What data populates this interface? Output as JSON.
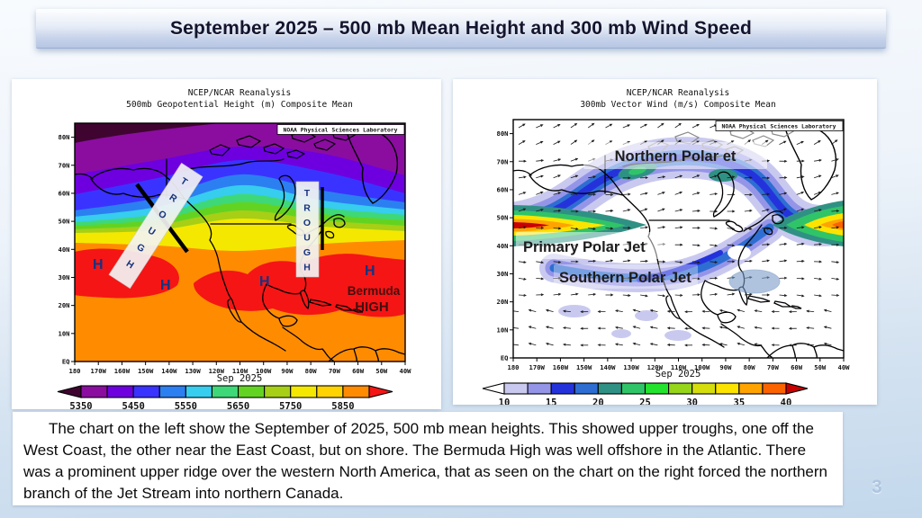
{
  "slide": {
    "title": "September 2025 – 500 mb Mean Height and 300 mb Wind Speed",
    "page_number": "3",
    "caption": "The chart on the left show the September of 2025, 500 mb mean heights. This showed upper troughs, one off the West Coast, the other near the East Coast, but on shore.  The Bermuda High was well offshore in the Atlantic.  There was a prominent upper ridge over the western North America, that as seen on the chart on the right forced the northern branch of the Jet Stream into northern Canada.",
    "colors": {
      "background_top": "#f8fbfe",
      "background_bottom": "#c3d8ec",
      "title_text": "#14142e",
      "page_number": "#aec5e0",
      "annotation_blue": "#16337f",
      "bermuda_text": "#431010"
    }
  },
  "chart_data": [
    {
      "type": "map-contour",
      "title_line1": "NCEP/NCAR Reanalysis",
      "title_line2": "500mb Geopotential Height (m) Composite Mean",
      "source": "NOAA Physical Sciences Laboratory",
      "footer": "Sep  2025",
      "units": "m",
      "lat_ticks": [
        "80N",
        "70N",
        "60N",
        "50N",
        "40N",
        "30N",
        "20N",
        "10N",
        "EQ"
      ],
      "lon_ticks": [
        "180",
        "170W",
        "160W",
        "150W",
        "140W",
        "130W",
        "120W",
        "110W",
        "100W",
        "90W",
        "80W",
        "70W",
        "60W",
        "50W",
        "40W"
      ],
      "colorbar": {
        "tick_labels": [
          "5350",
          "5450",
          "5550",
          "5650",
          "5750",
          "5850"
        ],
        "segment_interval": 50,
        "segment_colors": [
          "#8b0da0",
          "#6e00e0",
          "#3a33ff",
          "#2b7ff0",
          "#36cdef",
          "#3ed878",
          "#63d322",
          "#a6cf16",
          "#f4e800",
          "#fdd300",
          "#ff8c00"
        ],
        "under_arrow_color": "#3f0530",
        "over_arrow_color": "#f51515"
      },
      "annotations": {
        "trough_west": "TROUGH",
        "trough_east": "TROUGH",
        "highs": [
          "H",
          "H",
          "H",
          "H"
        ],
        "bermuda_line1": "Bermuda",
        "bermuda_line2": "HIGH"
      }
    },
    {
      "type": "map-vector",
      "title_line1": "NCEP/NCAR Reanalysis",
      "title_line2": "300mb Vector Wind (m/s) Composite Mean",
      "source": "NOAA Physical Sciences Laboratory",
      "footer": "Sep  2025",
      "units": "m/s",
      "lat_ticks": [
        "80N",
        "70N",
        "60N",
        "50N",
        "40N",
        "30N",
        "20N",
        "10N",
        "EQ"
      ],
      "lon_ticks": [
        "180",
        "170W",
        "160W",
        "150W",
        "140W",
        "130W",
        "120W",
        "110W",
        "100W",
        "90W",
        "80W",
        "70W",
        "60W",
        "50W",
        "40W"
      ],
      "colorbar": {
        "tick_labels": [
          "10",
          "15",
          "20",
          "25",
          "30",
          "35",
          "40"
        ],
        "segment_interval": 2.5,
        "segment_colors": [
          "#c9c9f0",
          "#9595e8",
          "#2432dc",
          "#2e6ed2",
          "#2f9184",
          "#30c468",
          "#24e32e",
          "#96d51a",
          "#d5de0c",
          "#fce400",
          "#ffa300",
          "#fb6300"
        ],
        "under_arrow_color": "#ffffff",
        "over_arrow_color": "#c80000"
      },
      "annotations": {
        "northern_jet": "Northern Polar et",
        "primary_jet": "Primary Polar Jet",
        "southern_jet": "Southern Polar Jet"
      }
    }
  ]
}
